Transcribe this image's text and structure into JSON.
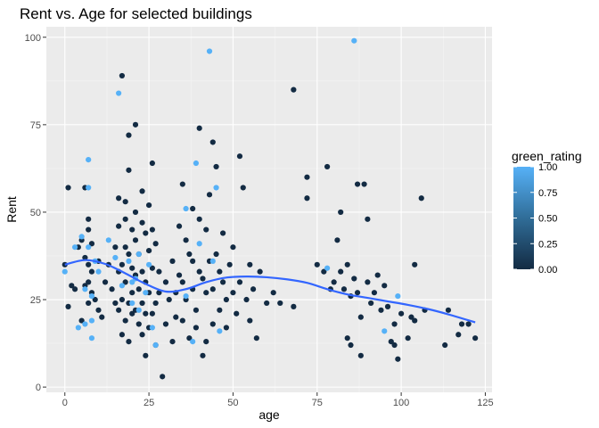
{
  "chart_data": {
    "type": "scatter",
    "title": "Rent vs. Age for selected buildings",
    "xlabel": "age",
    "ylabel": "Rent",
    "xlim": [
      -5.5,
      127
    ],
    "ylim": [
      -1.5,
      103
    ],
    "x_ticks": [
      0,
      25,
      50,
      75,
      100,
      125
    ],
    "y_ticks": [
      0,
      25,
      50,
      75,
      100
    ],
    "grid": true,
    "legend_placement": "right",
    "legend": {
      "title": "green_rating",
      "ticks": [
        1.0,
        0.75,
        0.5,
        0.25,
        0.0
      ],
      "tick_labels": [
        "1.00",
        "0.75",
        "0.50",
        "0.25",
        "0.00"
      ],
      "color_low": "#132b43",
      "color_high": "#56b1f7"
    },
    "colors": {
      "panel_background": "#ebebeb",
      "grid_major": "#ffffff",
      "smooth_line": "#3366ff",
      "non_green_point": "#132b43",
      "green_point": "#56b1f7"
    },
    "series": [
      {
        "color_value": 0,
        "points": [
          [
            0,
            35
          ],
          [
            1,
            57
          ],
          [
            1,
            23
          ],
          [
            2,
            29
          ],
          [
            3,
            28
          ],
          [
            4,
            40
          ],
          [
            5,
            42
          ],
          [
            5,
            19
          ],
          [
            6,
            57
          ],
          [
            6,
            37
          ],
          [
            6,
            29
          ],
          [
            7,
            48
          ],
          [
            7,
            45
          ],
          [
            7,
            35
          ],
          [
            7,
            30
          ],
          [
            7,
            24
          ],
          [
            8,
            33
          ],
          [
            8,
            41
          ],
          [
            8,
            27
          ],
          [
            9,
            25
          ],
          [
            10,
            22
          ],
          [
            10,
            36
          ],
          [
            11,
            20
          ],
          [
            12,
            30
          ],
          [
            13,
            35
          ],
          [
            14,
            28
          ],
          [
            15,
            40
          ],
          [
            15,
            24
          ],
          [
            16,
            54
          ],
          [
            16,
            46
          ],
          [
            16,
            33
          ],
          [
            16,
            22
          ],
          [
            17,
            25
          ],
          [
            17,
            15
          ],
          [
            17,
            89
          ],
          [
            17,
            35
          ],
          [
            18,
            53
          ],
          [
            18,
            48
          ],
          [
            18,
            40
          ],
          [
            18,
            30
          ],
          [
            18,
            19
          ],
          [
            19,
            62
          ],
          [
            19,
            72
          ],
          [
            19,
            38
          ],
          [
            19,
            24
          ],
          [
            19,
            13
          ],
          [
            20,
            45
          ],
          [
            20,
            34
          ],
          [
            20,
            27
          ],
          [
            20,
            21
          ],
          [
            21,
            75
          ],
          [
            21,
            50
          ],
          [
            21,
            42
          ],
          [
            21,
            32
          ],
          [
            21,
            22
          ],
          [
            22,
            38
          ],
          [
            22,
            28
          ],
          [
            22,
            18
          ],
          [
            23,
            56
          ],
          [
            23,
            47
          ],
          [
            23,
            33
          ],
          [
            23,
            24
          ],
          [
            23,
            15
          ],
          [
            24,
            44
          ],
          [
            24,
            30
          ],
          [
            24,
            21
          ],
          [
            24,
            9
          ],
          [
            25,
            52
          ],
          [
            25,
            39
          ],
          [
            25,
            27
          ],
          [
            25,
            17
          ],
          [
            26,
            45
          ],
          [
            26,
            34
          ],
          [
            26,
            64
          ],
          [
            26,
            21
          ],
          [
            27,
            41
          ],
          [
            27,
            24
          ],
          [
            27,
            12
          ],
          [
            28,
            33
          ],
          [
            28,
            27
          ],
          [
            29,
            3
          ],
          [
            30,
            30
          ],
          [
            30,
            18
          ],
          [
            31,
            25
          ],
          [
            32,
            36
          ],
          [
            32,
            13
          ],
          [
            33,
            27
          ],
          [
            33,
            20
          ],
          [
            34,
            46
          ],
          [
            34,
            32
          ],
          [
            35,
            58
          ],
          [
            35,
            30
          ],
          [
            35,
            19
          ],
          [
            36,
            42
          ],
          [
            36,
            25
          ],
          [
            37,
            38
          ],
          [
            37,
            14
          ],
          [
            38,
            51
          ],
          [
            38,
            36
          ],
          [
            38,
            28
          ],
          [
            39,
            22
          ],
          [
            39,
            17
          ],
          [
            40,
            48
          ],
          [
            40,
            33
          ],
          [
            40,
            74
          ],
          [
            41,
            31
          ],
          [
            41,
            9
          ],
          [
            42,
            45
          ],
          [
            42,
            27
          ],
          [
            42,
            13
          ],
          [
            43,
            55
          ],
          [
            43,
            36
          ],
          [
            44,
            70
          ],
          [
            44,
            28
          ],
          [
            44,
            18
          ],
          [
            45,
            63
          ],
          [
            45,
            38
          ],
          [
            46,
            33
          ],
          [
            46,
            22
          ],
          [
            47,
            44
          ],
          [
            47,
            30
          ],
          [
            48,
            25
          ],
          [
            48,
            17
          ],
          [
            49,
            35
          ],
          [
            50,
            40
          ],
          [
            50,
            27
          ],
          [
            51,
            21
          ],
          [
            52,
            66
          ],
          [
            52,
            30
          ],
          [
            53,
            57
          ],
          [
            54,
            25
          ],
          [
            55,
            35
          ],
          [
            55,
            19
          ],
          [
            56,
            28
          ],
          [
            57,
            14
          ],
          [
            58,
            33
          ],
          [
            60,
            24
          ],
          [
            62,
            27
          ],
          [
            64,
            24
          ],
          [
            68,
            85
          ],
          [
            68,
            23
          ],
          [
            72,
            60
          ],
          [
            72,
            54
          ],
          [
            75,
            35
          ],
          [
            77,
            33
          ],
          [
            78,
            63
          ],
          [
            79,
            28
          ],
          [
            80,
            30
          ],
          [
            81,
            42
          ],
          [
            82,
            50
          ],
          [
            82,
            33
          ],
          [
            83,
            28
          ],
          [
            84,
            14
          ],
          [
            84,
            35
          ],
          [
            85,
            12
          ],
          [
            85,
            26
          ],
          [
            86,
            31
          ],
          [
            87,
            27
          ],
          [
            87,
            58
          ],
          [
            88,
            20
          ],
          [
            88,
            9
          ],
          [
            89,
            58
          ],
          [
            90,
            48
          ],
          [
            90,
            30
          ],
          [
            91,
            24
          ],
          [
            92,
            27
          ],
          [
            93,
            32
          ],
          [
            94,
            22
          ],
          [
            95,
            29
          ],
          [
            96,
            23
          ],
          [
            97,
            13
          ],
          [
            98,
            18
          ],
          [
            98,
            12
          ],
          [
            99,
            8
          ],
          [
            100,
            21
          ],
          [
            102,
            14
          ],
          [
            103,
            20
          ],
          [
            104,
            35
          ],
          [
            104,
            19
          ],
          [
            106,
            54
          ],
          [
            107,
            22
          ],
          [
            113,
            12
          ],
          [
            114,
            22
          ],
          [
            117,
            15
          ],
          [
            118,
            18
          ],
          [
            120,
            18
          ],
          [
            122,
            14
          ]
        ]
      },
      {
        "color_value": 1,
        "points": [
          [
            0,
            33
          ],
          [
            3,
            40
          ],
          [
            4,
            17
          ],
          [
            5,
            43
          ],
          [
            6,
            28
          ],
          [
            6,
            18
          ],
          [
            7,
            65
          ],
          [
            7,
            57
          ],
          [
            7,
            40
          ],
          [
            8,
            26
          ],
          [
            8,
            19
          ],
          [
            8,
            14
          ],
          [
            9,
            36
          ],
          [
            10,
            33
          ],
          [
            13,
            42
          ],
          [
            15,
            37
          ],
          [
            16,
            84
          ],
          [
            17,
            29
          ],
          [
            19,
            36
          ],
          [
            20,
            30
          ],
          [
            20,
            24
          ],
          [
            21,
            31
          ],
          [
            22,
            38
          ],
          [
            22,
            22
          ],
          [
            24,
            27
          ],
          [
            25,
            35
          ],
          [
            26,
            17
          ],
          [
            27,
            12
          ],
          [
            36,
            51
          ],
          [
            36,
            26
          ],
          [
            38,
            13
          ],
          [
            39,
            64
          ],
          [
            40,
            41
          ],
          [
            43,
            96
          ],
          [
            44,
            36
          ],
          [
            45,
            57
          ],
          [
            46,
            16
          ],
          [
            78,
            34
          ],
          [
            86,
            99
          ],
          [
            95,
            16
          ],
          [
            99,
            26
          ]
        ]
      }
    ],
    "smooth": {
      "x": [
        0,
        6,
        12,
        18,
        24,
        30,
        36,
        42,
        48,
        54,
        60,
        66,
        72,
        78,
        84,
        90,
        96,
        102,
        108,
        114,
        122
      ],
      "y": [
        35,
        36.3,
        35.2,
        32.5,
        29.5,
        27.3,
        28.0,
        30.0,
        31.3,
        31.6,
        31.4,
        30.8,
        29.8,
        28.0,
        26.5,
        25.5,
        24.5,
        23.5,
        22.3,
        20.8,
        18.5
      ]
    }
  }
}
